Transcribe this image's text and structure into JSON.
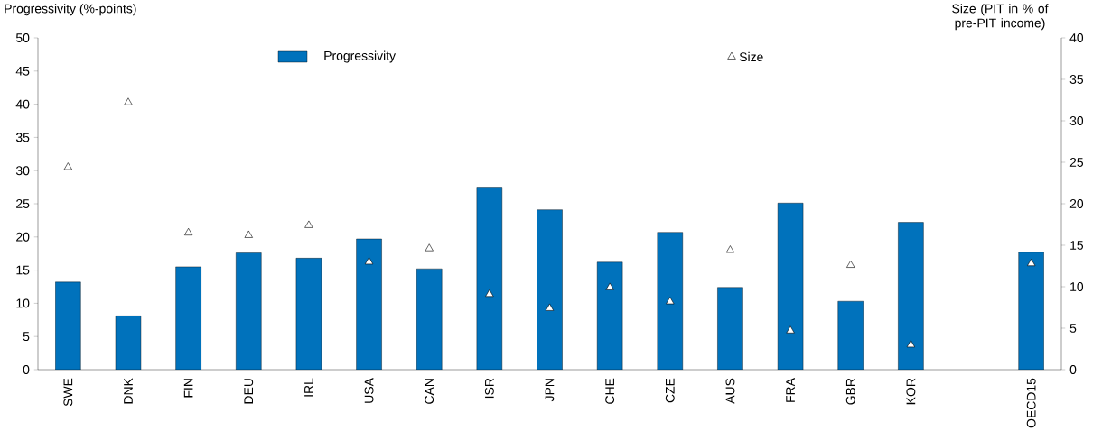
{
  "chart_data": {
    "type": "bar",
    "ylabel": "Progressivity (%-points)",
    "y2label": "Size (PIT in % of pre-PIT income)",
    "categories": [
      "SWE",
      "DNK",
      "FIN",
      "DEU",
      "IRL",
      "USA",
      "CAN",
      "ISR",
      "JPN",
      "CHE",
      "CZE",
      "AUS",
      "FRA",
      "GBR",
      "KOR",
      null,
      "OECD15"
    ],
    "series": [
      {
        "name": "Progressivity",
        "color": "#0072bc",
        "values": [
          13.2,
          8.1,
          15.5,
          17.6,
          16.8,
          19.7,
          15.2,
          27.5,
          24.1,
          16.2,
          20.7,
          12.4,
          25.1,
          10.3,
          22.2,
          null,
          17.7
        ]
      },
      {
        "name": "Size",
        "type": "scatter",
        "axis": "y2",
        "color": "#000000",
        "values": [
          24.4,
          32.2,
          16.5,
          16.2,
          17.4,
          13.0,
          14.6,
          9.1,
          7.4,
          9.9,
          8.2,
          14.4,
          4.7,
          12.6,
          3.0,
          null,
          12.8
        ]
      }
    ],
    "ylim": [
      0,
      50
    ],
    "yticks": [
      0,
      5,
      10,
      15,
      20,
      25,
      30,
      35,
      40,
      45,
      50
    ],
    "y2lim": [
      0,
      40
    ],
    "y2ticks": [
      0,
      5,
      10,
      15,
      20,
      25,
      30,
      35,
      40
    ],
    "marker": "triangle",
    "legend": "top",
    "grid": false
  }
}
